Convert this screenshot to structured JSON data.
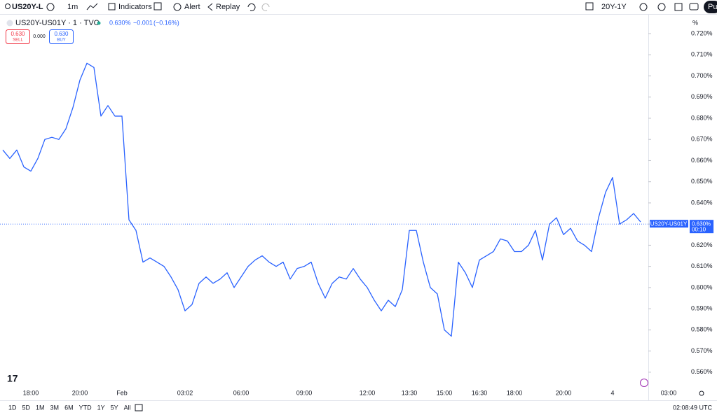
{
  "toolbar": {
    "symbol": "US20Y-L",
    "interval": "1m",
    "indicators": "Indicators",
    "alert": "Alert",
    "replay": "Replay",
    "range": "20Y-1Y",
    "publish": "Pu"
  },
  "legend": {
    "symbol": "US20Y-US01Y · 1 · TVC",
    "last": "0.630%",
    "change": "−0.001",
    "change_pct": "(−0.16%)"
  },
  "trade": {
    "sell_price": "0.630",
    "sell": "SELL",
    "spread": "0.000",
    "buy_price": "0.630",
    "buy": "BUY"
  },
  "chart_data": {
    "type": "line",
    "color": "#2962ff",
    "y_unit": "%",
    "categories": [
      null,
      null,
      null,
      null,
      "18:00",
      null,
      null,
      null,
      null,
      null,
      null,
      "20:00",
      null,
      null,
      null,
      null,
      null,
      "Feb",
      null,
      null,
      null,
      null,
      null,
      null,
      null,
      null,
      "03:02",
      null,
      null,
      null,
      null,
      null,
      null,
      null,
      "06:00",
      null,
      null,
      null,
      null,
      null,
      null,
      null,
      null,
      "09:00",
      null,
      null,
      null,
      null,
      null,
      null,
      null,
      null,
      "12:00",
      null,
      null,
      null,
      null,
      null,
      "13:30",
      null,
      null,
      null,
      null,
      "15:00",
      null,
      null,
      null,
      null,
      "16:30",
      null,
      null,
      null,
      null,
      "18:00",
      null,
      null,
      null,
      null,
      null,
      null,
      "20:00",
      null,
      null,
      null,
      null,
      null,
      null,
      "4",
      null,
      null,
      null,
      null,
      null,
      null,
      null,
      "03:00"
    ],
    "values": [
      0.665,
      0.661,
      0.665,
      0.657,
      0.655,
      0.661,
      0.67,
      0.671,
      0.67,
      0.675,
      0.685,
      0.698,
      0.706,
      0.704,
      0.681,
      0.686,
      0.681,
      0.681,
      0.632,
      0.627,
      0.612,
      0.614,
      0.612,
      0.61,
      0.605,
      0.599,
      0.589,
      0.592,
      0.602,
      0.605,
      0.602,
      0.604,
      0.607,
      0.6,
      0.605,
      0.61,
      0.613,
      0.615,
      0.612,
      0.61,
      0.612,
      0.604,
      0.609,
      0.61,
      0.612,
      0.602,
      0.595,
      0.602,
      0.605,
      0.604,
      0.609,
      0.604,
      0.6,
      0.594,
      0.589,
      0.594,
      0.591,
      0.599,
      0.627,
      0.627,
      0.612,
      0.6,
      0.597,
      0.58,
      0.577,
      0.612,
      0.607,
      0.6,
      0.613,
      0.615,
      0.617,
      0.623,
      0.622,
      0.617,
      0.617,
      0.62,
      0.627,
      0.613,
      0.63,
      0.633,
      0.625,
      0.628,
      0.622,
      0.62,
      0.617,
      0.633,
      0.645,
      0.652,
      0.63,
      0.632,
      0.635,
      0.631,
      null,
      null,
      null,
      null
    ],
    "ylim": [
      0.554,
      0.7286
    ],
    "yticks": [
      {
        "value": 0.56,
        "label": "0.560%"
      },
      {
        "value": 0.57,
        "label": "0.570%"
      },
      {
        "value": 0.58,
        "label": "0.580%"
      },
      {
        "value": 0.59,
        "label": "0.590%"
      },
      {
        "value": 0.6,
        "label": "0.600%"
      },
      {
        "value": 0.61,
        "label": "0.610%"
      },
      {
        "value": 0.62,
        "label": "0.620%"
      },
      {
        "value": 0.63,
        "label": "0.630%"
      },
      {
        "value": 0.64,
        "label": "0.640%"
      },
      {
        "value": 0.65,
        "label": "0.650%"
      },
      {
        "value": 0.66,
        "label": "0.660%"
      },
      {
        "value": 0.67,
        "label": "0.670%"
      },
      {
        "value": 0.68,
        "label": "0.680%"
      },
      {
        "value": 0.69,
        "label": "0.690%"
      },
      {
        "value": 0.7,
        "label": "0.700%"
      },
      {
        "value": 0.71,
        "label": "0.710%"
      },
      {
        "value": 0.72,
        "label": "0.720%"
      }
    ],
    "price_label": {
      "name": "US20Y-US01Y",
      "value": 0.63,
      "label": "0.630%",
      "countdown": "00:10"
    }
  },
  "ranges": [
    "1D",
    "5D",
    "1M",
    "3M",
    "6M",
    "YTD",
    "1Y",
    "5Y",
    "All"
  ],
  "clock": "02:08:49 UTC"
}
